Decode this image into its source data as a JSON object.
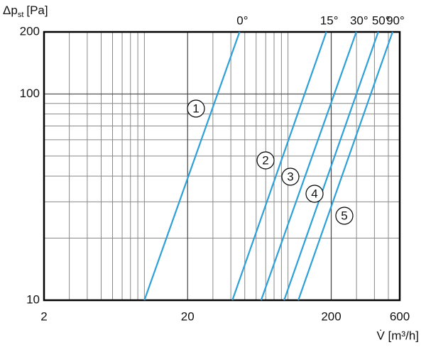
{
  "chart_data": {
    "type": "line",
    "ylabel": {
      "main": "Δp",
      "sub": "st",
      "unit": "[Pa]"
    },
    "xlabel": "V̇ [m³/h]",
    "xlog": true,
    "ylog": true,
    "grid": true,
    "xlim": [
      2,
      600
    ],
    "ylim": [
      10,
      200
    ],
    "xticks": [
      2,
      20,
      200,
      600
    ],
    "yticks": [
      10,
      100,
      200
    ],
    "xminor": [
      3,
      4,
      5,
      6,
      7,
      8,
      9,
      10,
      30,
      40,
      50,
      60,
      70,
      80,
      90,
      100,
      300,
      400,
      500
    ],
    "yminor": [
      20,
      30,
      40,
      50,
      60,
      70,
      80,
      90
    ],
    "series": [
      {
        "name": "0°",
        "label": "1",
        "color": "#2ea0d8",
        "x": [
          10,
          46
        ],
        "values": [
          10,
          200
        ]
      },
      {
        "name": "15°",
        "label": "2",
        "color": "#2ea0d8",
        "x": [
          41,
          185
        ],
        "values": [
          10,
          200
        ]
      },
      {
        "name": "30°",
        "label": "3",
        "color": "#2ea0d8",
        "x": [
          65,
          299
        ],
        "values": [
          10,
          200
        ]
      },
      {
        "name": "50°",
        "label": "4",
        "color": "#2ea0d8",
        "x": [
          94,
          425
        ],
        "values": [
          10,
          200
        ]
      },
      {
        "name": "90°",
        "label": "5",
        "color": "#2ea0d8",
        "x": [
          118,
          535
        ],
        "values": [
          10,
          200
        ]
      }
    ]
  }
}
